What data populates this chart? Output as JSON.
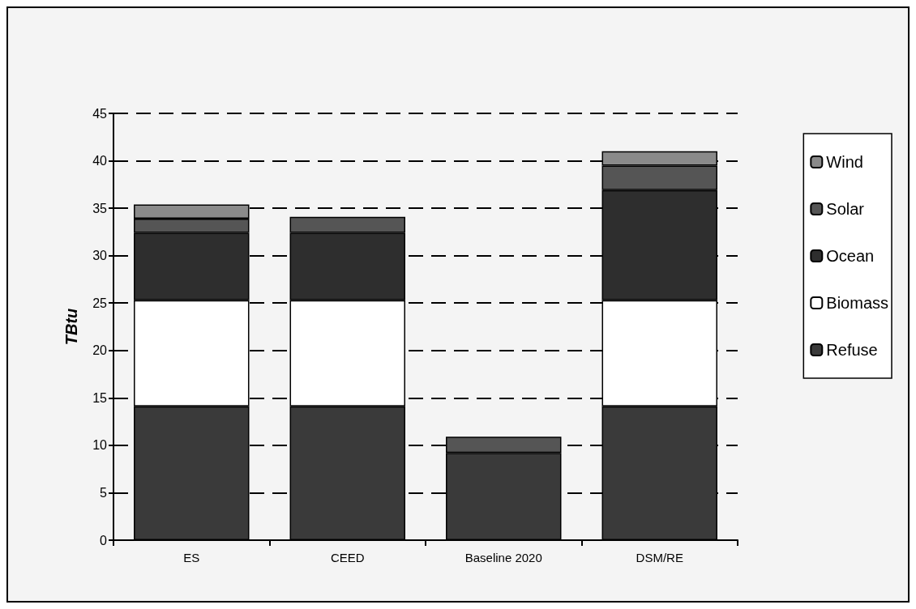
{
  "chart_data": {
    "type": "bar",
    "stacked": true,
    "ylabel": "TBtu",
    "categories": [
      "ES",
      "CEED",
      "Baseline 2020",
      "DSM/RE"
    ],
    "series": [
      {
        "name": "Refuse",
        "color": "#3a3a3a",
        "values": [
          14.1,
          14.1,
          9.2,
          14.1
        ]
      },
      {
        "name": "Biomass",
        "color": "#ffffff",
        "values": [
          11.2,
          11.2,
          0,
          11.2
        ]
      },
      {
        "name": "Ocean",
        "color": "#2e2e2e",
        "values": [
          7.1,
          7.1,
          0,
          11.6
        ]
      },
      {
        "name": "Solar",
        "color": "#555555",
        "values": [
          1.5,
          1.7,
          1.7,
          2.6
        ]
      },
      {
        "name": "Wind",
        "color": "#8a8a8a",
        "values": [
          1.5,
          0,
          0,
          1.5
        ]
      }
    ],
    "ylim": [
      0,
      45
    ],
    "yticks": [
      0,
      5,
      10,
      15,
      20,
      25,
      30,
      35,
      40,
      45
    ],
    "grid": "y",
    "legend": "right"
  }
}
